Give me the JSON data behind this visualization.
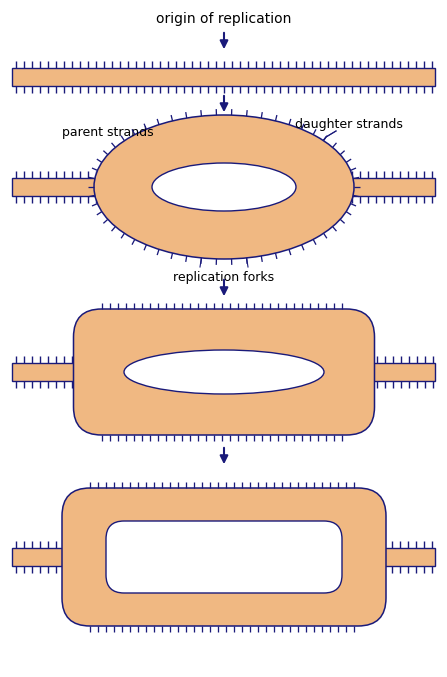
{
  "bg_color": "#ffffff",
  "dna_fill": "#f0b882",
  "dna_stroke": "#1a1a7a",
  "arrow_color": "#1a1a7a",
  "text_color": "#000000",
  "label1": "origin of replication",
  "label2": "parent strands",
  "label3": "daughter strands",
  "label4": "replication forks",
  "figw": 4.47,
  "figh": 6.77,
  "dpi": 100
}
